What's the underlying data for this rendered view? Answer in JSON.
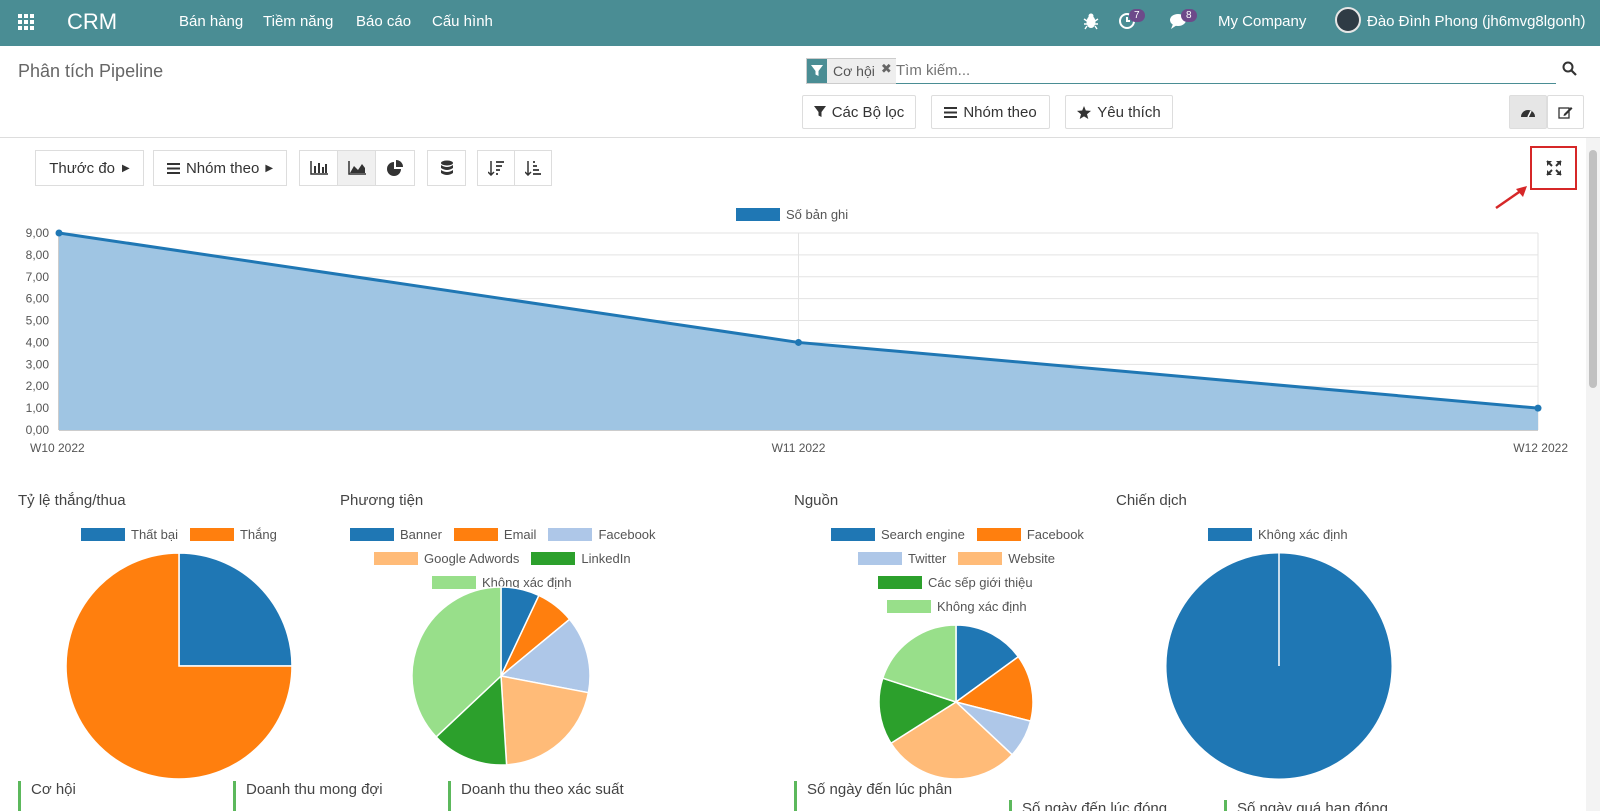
{
  "navbar": {
    "brand": "CRM",
    "menu": [
      "Bán hàng",
      "Tiềm năng",
      "Báo cáo",
      "Cấu hình"
    ],
    "activity_count": "7",
    "message_count": "8",
    "company": "My Company",
    "user": "Đào Đình Phong (jh6mvg8lgonh)"
  },
  "control_panel": {
    "title": "Phân tích Pipeline",
    "facet_label": "Cơ hội",
    "search_placeholder": "Tìm kiếm...",
    "filters_label": "Các Bộ lọc",
    "groupby_label": "Nhóm theo",
    "favorites_label": "Yêu thích"
  },
  "toolbar": {
    "measures_label": "Thước đo",
    "groupby_label": "Nhóm theo"
  },
  "chart_data": [
    {
      "type": "area",
      "title": "",
      "legend": [
        "Số bản ghi"
      ],
      "categories": [
        "W10 2022",
        "W11 2022",
        "W12 2022"
      ],
      "values": [
        9,
        4,
        1
      ],
      "ylim": [
        0,
        9
      ],
      "yticks": [
        "0,00",
        "1,00",
        "2,00",
        "3,00",
        "4,00",
        "5,00",
        "6,00",
        "7,00",
        "8,00",
        "9,00"
      ],
      "color": "#1f77b4",
      "fill": "#9fc5e3"
    },
    {
      "type": "pie",
      "title": "Tỷ lệ thắng/thua",
      "labels": [
        "Thất bại",
        "Thắng"
      ],
      "values": [
        25,
        75
      ],
      "colors": [
        "#1f77b4",
        "#ff7f0e"
      ]
    },
    {
      "type": "pie",
      "title": "Phương tiện",
      "labels": [
        "Banner",
        "Email",
        "Facebook",
        "Google Adwords",
        "LinkedIn",
        "Không xác định"
      ],
      "values": [
        7,
        7,
        14,
        21,
        14,
        37
      ],
      "colors": [
        "#1f77b4",
        "#ff7f0e",
        "#aec7e8",
        "#ffbb78",
        "#2ca02c",
        "#98df8a"
      ]
    },
    {
      "type": "pie",
      "title": "Nguồn",
      "labels": [
        "Search engine",
        "Facebook",
        "Twitter",
        "Website",
        "Các sếp giới thiệu",
        "Không xác định"
      ],
      "values": [
        15,
        14,
        8,
        29,
        14,
        20
      ],
      "colors": [
        "#1f77b4",
        "#ff7f0e",
        "#aec7e8",
        "#ffbb78",
        "#2ca02c",
        "#98df8a"
      ]
    },
    {
      "type": "pie",
      "title": "Chiến dịch",
      "labels": [
        "Không xác định"
      ],
      "values": [
        100
      ],
      "colors": [
        "#1f77b4"
      ]
    }
  ],
  "kpis": {
    "k1": "Cơ hội",
    "k2": "Doanh thu mong đợi",
    "k3": "Doanh thu theo xác suất",
    "k4": "Số ngày đến lúc phân",
    "k5": "Số ngày đến lúc đóng",
    "k6": "Số ngày quá hạn đóng"
  }
}
